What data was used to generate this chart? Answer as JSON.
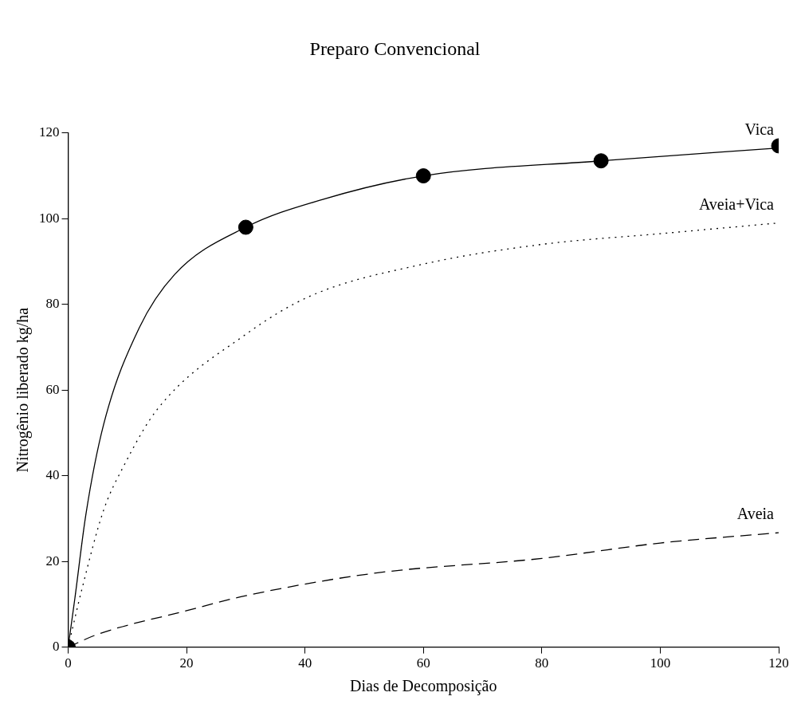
{
  "chart_data": {
    "type": "line",
    "title": "Preparo Convencional",
    "xlabel": "Dias de Decomposição",
    "ylabel": "Nitrogênio liberado kg/ha",
    "xlim": [
      0,
      120
    ],
    "ylim": [
      0,
      120
    ],
    "xticks": [
      0,
      20,
      40,
      60,
      80,
      100,
      120
    ],
    "yticks": [
      0,
      20,
      40,
      60,
      80,
      100,
      120
    ],
    "grid": false,
    "legend": false,
    "series": [
      {
        "type": "scatter",
        "color": "#000000",
        "marker": "circle",
        "x": [
          0,
          30,
          60,
          90,
          120
        ],
        "values": [
          0,
          98,
          110,
          113.5,
          117
        ]
      },
      {
        "name": "Vica",
        "color": "#000000",
        "line_style": "solid",
        "marker": "none",
        "x": [
          0,
          1.1,
          3,
          6,
          12,
          18,
          30,
          43,
          60,
          90,
          120
        ],
        "values": [
          0,
          11,
          31,
          52,
          74.5,
          87,
          98,
          104.5,
          110,
          113.5,
          116.5
        ]
      },
      {
        "name": "Aveia+Vica",
        "color": "#000000",
        "line_style": "dotted",
        "marker": "none",
        "x": [
          0,
          2.3,
          6,
          9.4,
          15,
          30,
          41,
          60,
          80,
          100,
          120
        ],
        "values": [
          0,
          13.4,
          32,
          42.3,
          55.4,
          73,
          82,
          89.4,
          94,
          96.5,
          99
        ]
      },
      {
        "name": "Aveia",
        "color": "#000000",
        "line_style": "dashed",
        "marker": "none",
        "x": [
          0,
          5,
          20,
          30,
          52,
          80,
          100,
          120
        ],
        "values": [
          0,
          3,
          8.5,
          12,
          17.3,
          20.7,
          24.3,
          26.7
        ]
      }
    ]
  }
}
